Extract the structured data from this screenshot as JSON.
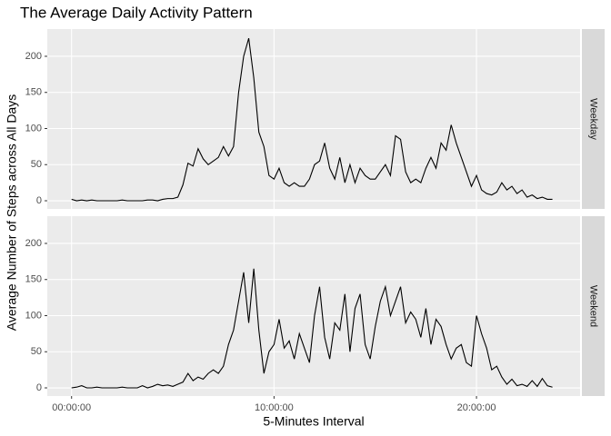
{
  "chart_data": {
    "type": "line",
    "title": "The Average Daily Activity Pattern",
    "xlabel": "5-Minutes Interval",
    "ylabel": "Average Number of Steps across All Days",
    "x": [
      0,
      15,
      30,
      45,
      60,
      75,
      90,
      105,
      120,
      135,
      150,
      165,
      180,
      195,
      210,
      225,
      240,
      255,
      270,
      285,
      300,
      315,
      330,
      345,
      360,
      375,
      390,
      405,
      420,
      435,
      450,
      465,
      480,
      495,
      510,
      525,
      540,
      555,
      570,
      585,
      600,
      615,
      630,
      645,
      660,
      675,
      690,
      705,
      720,
      735,
      750,
      765,
      780,
      795,
      810,
      825,
      840,
      855,
      870,
      885,
      900,
      915,
      930,
      945,
      960,
      975,
      990,
      1005,
      1020,
      1035,
      1050,
      1065,
      1080,
      1095,
      1110,
      1125,
      1140,
      1155,
      1170,
      1185,
      1200,
      1215,
      1230,
      1245,
      1260,
      1275,
      1290,
      1305,
      1320,
      1335,
      1350,
      1365,
      1380,
      1395,
      1410,
      1425
    ],
    "xlim": [
      -72,
      1507
    ],
    "xticks": [
      {
        "value": 0,
        "label": "00:00:00"
      },
      {
        "value": 600,
        "label": "10:00:00"
      },
      {
        "value": 1200,
        "label": "20:00:00"
      }
    ],
    "ylim": [
      -11.3,
      237.7
    ],
    "yticks": [
      0,
      50,
      100,
      150,
      200
    ],
    "grid": true,
    "facets": true,
    "series": [
      {
        "name": "Weekday",
        "color": "#000000",
        "values": [
          2,
          0,
          1,
          0,
          1,
          0,
          0,
          0,
          0,
          0,
          1,
          0,
          0,
          0,
          0,
          1,
          1,
          0,
          2,
          3,
          3,
          5,
          22,
          52,
          48,
          72,
          58,
          50,
          55,
          60,
          75,
          62,
          75,
          150,
          200,
          225,
          170,
          95,
          75,
          35,
          30,
          45,
          25,
          20,
          25,
          20,
          20,
          30,
          50,
          55,
          80,
          45,
          30,
          60,
          25,
          50,
          25,
          45,
          35,
          30,
          30,
          40,
          50,
          35,
          90,
          85,
          40,
          25,
          30,
          25,
          45,
          60,
          45,
          80,
          70,
          105,
          80,
          60,
          40,
          20,
          35,
          15,
          10,
          8,
          12,
          25,
          15,
          20,
          10,
          15,
          5,
          8,
          3,
          5,
          2,
          2
        ]
      },
      {
        "name": "Weekend",
        "color": "#000000",
        "values": [
          0,
          1,
          3,
          0,
          0,
          1,
          0,
          0,
          0,
          0,
          1,
          0,
          0,
          0,
          3,
          0,
          2,
          5,
          3,
          4,
          2,
          5,
          8,
          20,
          10,
          15,
          12,
          20,
          25,
          20,
          30,
          60,
          80,
          120,
          160,
          90,
          165,
          80,
          20,
          50,
          60,
          95,
          55,
          65,
          40,
          75,
          55,
          35,
          100,
          140,
          70,
          40,
          90,
          80,
          130,
          50,
          110,
          130,
          60,
          40,
          85,
          120,
          140,
          100,
          120,
          140,
          90,
          105,
          95,
          70,
          110,
          60,
          95,
          85,
          60,
          40,
          55,
          60,
          35,
          30,
          100,
          75,
          55,
          25,
          30,
          15,
          5,
          12,
          3,
          5,
          2,
          10,
          2,
          13,
          3,
          1
        ]
      }
    ]
  }
}
